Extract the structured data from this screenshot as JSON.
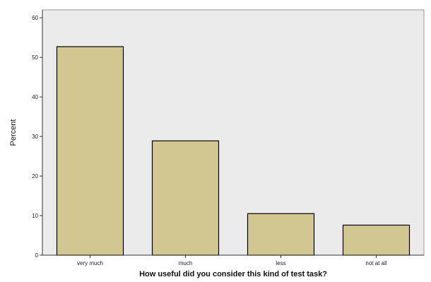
{
  "chart_data": {
    "type": "bar",
    "categories": [
      "very much",
      "much",
      "less",
      "not at all"
    ],
    "values": [
      52.7,
      28.9,
      10.5,
      7.6
    ],
    "xlabel": "How useful did you consider this kind of test task?",
    "ylabel": "Percent",
    "ylim": [
      0,
      62
    ],
    "yticks": [
      0,
      10,
      20,
      30,
      40,
      50,
      60
    ],
    "grid": false,
    "bar_color": "#d2c790",
    "bar_stroke": "#000000",
    "plot_background": "#ebebeb"
  }
}
